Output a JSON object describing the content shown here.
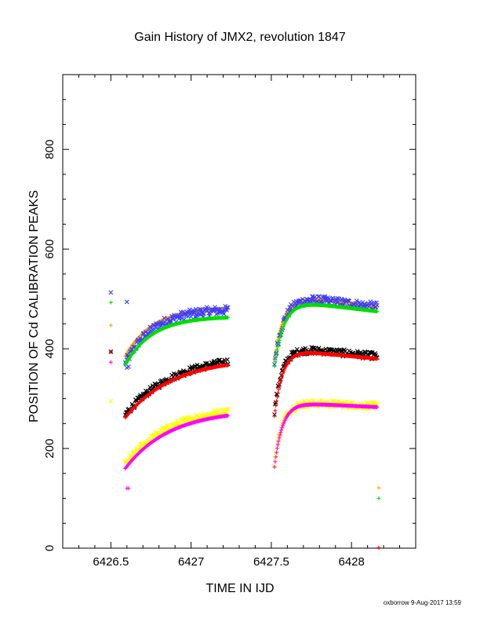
{
  "chart_data": {
    "type": "scatter",
    "title": "Gain History of JMX2, revolution 1847",
    "xlabel": "TIME IN IJD",
    "ylabel": "POSITION OF Cd CALIBRATION PEAKS",
    "footer": "oxborrow  9-Aug-2017 13:59",
    "xlim": [
      6426.2,
      6428.4
    ],
    "ylim": [
      0,
      950
    ],
    "x_ticks": [
      6426.5,
      6427,
      6427.5,
      6428
    ],
    "x_tick_labels": [
      "6426.5",
      "6427",
      "6427.5",
      "6428"
    ],
    "y_ticks": [
      0,
      200,
      400,
      600,
      800
    ],
    "y_tick_labels": [
      "0",
      "200",
      "400",
      "600",
      "800"
    ],
    "grid": false,
    "series": [
      {
        "color": "#ffa500",
        "marker": "+",
        "segments": [
          {
            "t0": 6426.59,
            "t1": 6427.23,
            "v0": 385,
            "a": 97,
            "tau": 0.17,
            "b": 0
          },
          {
            "t0": 6427.52,
            "t1": 6428.16,
            "v0": 380,
            "a": 130,
            "tau": 0.06,
            "b": 25
          }
        ],
        "points": [
          [
            6426.5,
            447
          ],
          [
            6428.17,
            121
          ]
        ]
      },
      {
        "color": "#3c3cff",
        "marker": "x",
        "noise": 9,
        "segments": [
          {
            "t0": 6426.59,
            "t1": 6427.23,
            "v0": 370,
            "a": 110,
            "tau": 0.17,
            "b": 0
          },
          {
            "t0": 6427.52,
            "t1": 6428.16,
            "v0": 372,
            "a": 137,
            "tau": 0.06,
            "b": 25
          }
        ],
        "points": [
          [
            6426.5,
            513
          ],
          [
            6426.6,
            494
          ],
          [
            6426.6,
            362
          ],
          [
            6426.61,
            364
          ]
        ]
      },
      {
        "color": "#00dd00",
        "marker": "+",
        "segments": [
          {
            "t0": 6426.59,
            "t1": 6427.23,
            "v0": 368,
            "a": 97,
            "tau": 0.17,
            "b": 0
          },
          {
            "t0": 6427.52,
            "t1": 6428.16,
            "v0": 365,
            "a": 135,
            "tau": 0.06,
            "b": 25
          }
        ],
        "points": [
          [
            6426.5,
            493
          ],
          [
            6428.17,
            100
          ]
        ]
      },
      {
        "color": "#000000",
        "marker": "x",
        "noise": 7,
        "segments": [
          {
            "t0": 6426.59,
            "t1": 6427.23,
            "v0": 268,
            "a": 120,
            "tau": 0.3,
            "b": 0
          },
          {
            "t0": 6427.52,
            "t1": 6428.16,
            "v0": 275,
            "a": 130,
            "tau": 0.05,
            "b": 20
          }
        ],
        "points": [
          [
            6426.5,
            394
          ]
        ]
      },
      {
        "color": "#ff0000",
        "marker": "+",
        "segments": [
          {
            "t0": 6426.59,
            "t1": 6427.23,
            "v0": 262,
            "a": 120,
            "tau": 0.3,
            "b": 0
          },
          {
            "t0": 6427.52,
            "t1": 6428.16,
            "v0": 265,
            "a": 135,
            "tau": 0.05,
            "b": 20
          }
        ],
        "points": [
          [
            6426.5,
            394
          ],
          [
            6428.17,
            1
          ]
        ]
      },
      {
        "color": "#ffff00",
        "marker": "x",
        "noise": 7,
        "segments": [
          {
            "t0": 6426.59,
            "t1": 6427.23,
            "v0": 168,
            "a": 118,
            "tau": 0.28,
            "b": 0
          },
          {
            "t0": 6427.52,
            "t1": 6428.16,
            "v0": 170,
            "a": 125,
            "tau": 0.05,
            "b": 10
          }
        ],
        "points": [
          [
            6426.5,
            295
          ]
        ]
      },
      {
        "color": "#ff00ff",
        "marker": "+",
        "segments": [
          {
            "t0": 6426.59,
            "t1": 6427.23,
            "v0": 160,
            "a": 118,
            "tau": 0.28,
            "b": 0
          },
          {
            "t0": 6427.52,
            "t1": 6428.16,
            "v0": 163,
            "a": 130,
            "tau": 0.05,
            "b": 10
          }
        ],
        "points": [
          [
            6426.5,
            373
          ],
          [
            6426.6,
            120
          ],
          [
            6426.61,
            120
          ]
        ]
      }
    ]
  }
}
